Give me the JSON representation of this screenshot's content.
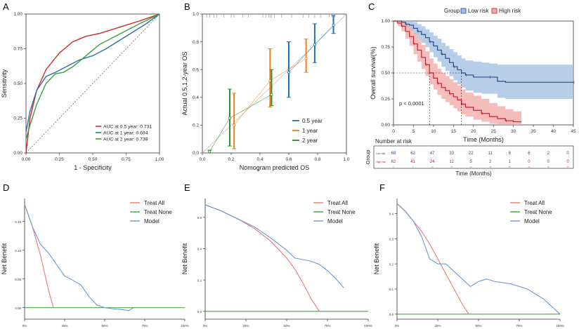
{
  "colors": {
    "red": "#cc2b2b",
    "blue": "#2e6fa8",
    "green": "#3a9e3a",
    "orange": "#f07f1c",
    "calib_blue": "#1f6fba",
    "calib_green": "#2a8f2a",
    "km_low": "#274b8e",
    "km_high": "#c8202a",
    "km_low_band": "#9fbde0",
    "km_high_band": "#f2a6a6",
    "dca_all": "#e8797a",
    "dca_none": "#3aa83a",
    "dca_model": "#6b97cf",
    "axis": "#333333",
    "text": "#222222"
  },
  "panels": {
    "A": "A",
    "B": "B",
    "C": "C",
    "D": "D",
    "E": "E",
    "F": "F"
  },
  "chart_data": [
    {
      "id": "A",
      "type": "line",
      "xlabel": "1 - Specificity",
      "ylabel": "Sensitivity",
      "xlim": [
        0,
        1
      ],
      "ylim": [
        0,
        1
      ],
      "xticks": [
        "0.00",
        "0.25",
        "0.50",
        "0.75",
        "1.00"
      ],
      "yticks": [
        "0.00",
        "0.25",
        "0.50",
        "0.75",
        "1.00"
      ],
      "legend_position": "bottom-right",
      "series": [
        {
          "name": "AUC at 0.5 year: 0.731",
          "color_key": "red",
          "x": [
            0,
            0.03,
            0.08,
            0.15,
            0.25,
            0.35,
            0.45,
            0.55,
            0.65,
            0.75,
            0.85,
            1.0
          ],
          "y": [
            0,
            0.25,
            0.45,
            0.6,
            0.72,
            0.8,
            0.84,
            0.86,
            0.89,
            0.92,
            0.95,
            1.0
          ]
        },
        {
          "name": "AUC at 1 year: 0.694",
          "color_key": "blue",
          "x": [
            0,
            0.03,
            0.08,
            0.15,
            0.22,
            0.3,
            0.4,
            0.5,
            0.6,
            0.7,
            0.8,
            0.9,
            1.0
          ],
          "y": [
            0.15,
            0.3,
            0.45,
            0.55,
            0.58,
            0.62,
            0.67,
            0.7,
            0.75,
            0.81,
            0.87,
            0.93,
            1.0
          ]
        },
        {
          "name": "AUC at 2 year: 0.738",
          "color_key": "green",
          "x": [
            0,
            0.03,
            0.08,
            0.15,
            0.22,
            0.28,
            0.35,
            0.45,
            0.55,
            0.65,
            0.75,
            0.85,
            1.0
          ],
          "y": [
            0.1,
            0.2,
            0.35,
            0.5,
            0.57,
            0.58,
            0.62,
            0.7,
            0.78,
            0.83,
            0.88,
            0.93,
            1.0
          ]
        }
      ]
    },
    {
      "id": "B",
      "type": "scatter",
      "xlabel": "Nomogram predicted OS",
      "ylabel": "Actual 0.5,1,2-year OS",
      "xlim": [
        0,
        1
      ],
      "ylim": [
        0,
        1
      ],
      "xticks": [
        "0.0",
        "0.2",
        "0.4",
        "0.6",
        "0.8",
        "1.0"
      ],
      "yticks": [
        "0.0",
        "0.2",
        "0.4",
        "0.6",
        "0.8",
        "1.0"
      ],
      "legend_position": "bottom-right",
      "rug": [
        0.03,
        0.05,
        0.08,
        0.1,
        0.15,
        0.2,
        0.22,
        0.28,
        0.32,
        0.42,
        0.44,
        0.46,
        0.47,
        0.48,
        0.5,
        0.55,
        0.62,
        0.7,
        0.74,
        0.78,
        0.82,
        0.88,
        0.9,
        0.92
      ],
      "series": [
        {
          "name": "0.5 year",
          "color_key": "calib_blue",
          "x": [
            0.6,
            0.78,
            0.91
          ],
          "y": [
            0.58,
            0.78,
            0.92
          ],
          "lo": [
            0.4,
            0.65,
            0.86
          ],
          "hi": [
            0.8,
            0.93,
            0.99
          ]
        },
        {
          "name": "1 year",
          "color_key": "orange",
          "x": [
            0.22,
            0.47,
            0.72
          ],
          "y": [
            0.2,
            0.52,
            0.68
          ],
          "lo": [
            0.03,
            0.33,
            0.58
          ],
          "hi": [
            0.43,
            0.75,
            0.82
          ]
        },
        {
          "name": "2 year",
          "color_key": "calib_green",
          "x": [
            0.05,
            0.19,
            0.48
          ],
          "y": [
            0.01,
            0.25,
            0.42
          ],
          "lo": [
            0.0,
            0.05,
            0.34
          ],
          "hi": [
            0.02,
            0.46,
            0.6
          ]
        }
      ],
      "ideal_line": true
    },
    {
      "id": "C",
      "type": "line",
      "legend_title": "Group",
      "legend_labels": [
        "Low risk",
        "High risk"
      ],
      "xlabel": "Time (Months)",
      "ylabel": "Overall survival(%)",
      "xlim": [
        0,
        45
      ],
      "ylim": [
        0,
        1
      ],
      "xticks": [
        "0",
        "5",
        "10",
        "15",
        "20",
        "25",
        "30",
        "35",
        "40",
        "45"
      ],
      "yticks": [
        "0.00",
        "0.25",
        "0.50",
        "0.75",
        "1.00"
      ],
      "pvalue": "p < 0.0001",
      "median_low": 17,
      "median_high": 9,
      "series": [
        {
          "name": "Low risk",
          "color_key": "km_low",
          "band_key": "km_low_band",
          "x": [
            0,
            2,
            3,
            4,
            5,
            6,
            7,
            8,
            9,
            10,
            11,
            12,
            13,
            14,
            15,
            16,
            17,
            18,
            20,
            22,
            24,
            26,
            28,
            45
          ],
          "y": [
            1.0,
            0.99,
            0.97,
            0.96,
            0.93,
            0.9,
            0.87,
            0.84,
            0.8,
            0.76,
            0.72,
            0.68,
            0.64,
            0.6,
            0.56,
            0.53,
            0.5,
            0.48,
            0.46,
            0.46,
            0.46,
            0.42,
            0.41,
            0.41
          ],
          "lo": [
            1.0,
            0.97,
            0.94,
            0.91,
            0.87,
            0.83,
            0.79,
            0.75,
            0.7,
            0.65,
            0.61,
            0.56,
            0.52,
            0.47,
            0.43,
            0.39,
            0.36,
            0.33,
            0.31,
            0.3,
            0.3,
            0.26,
            0.25,
            0.25
          ],
          "hi": [
            1.0,
            1.0,
            1.0,
            1.0,
            0.99,
            0.97,
            0.95,
            0.92,
            0.89,
            0.86,
            0.83,
            0.79,
            0.76,
            0.73,
            0.7,
            0.67,
            0.64,
            0.62,
            0.61,
            0.6,
            0.59,
            0.58,
            0.58,
            0.58
          ]
        },
        {
          "name": "High risk",
          "color_key": "km_high",
          "band_key": "km_high_band",
          "x": [
            0,
            1,
            2,
            3,
            4,
            5,
            6,
            7,
            8,
            9,
            10,
            11,
            12,
            13,
            14,
            15,
            16,
            17,
            18,
            20,
            22,
            24,
            26,
            28,
            30,
            32
          ],
          "y": [
            1.0,
            0.98,
            0.95,
            0.9,
            0.85,
            0.78,
            0.72,
            0.65,
            0.58,
            0.5,
            0.45,
            0.4,
            0.36,
            0.33,
            0.3,
            0.27,
            0.24,
            0.2,
            0.17,
            0.14,
            0.11,
            0.08,
            0.06,
            0.04,
            0.03,
            0.03
          ],
          "lo": [
            1.0,
            0.95,
            0.9,
            0.83,
            0.76,
            0.68,
            0.61,
            0.54,
            0.47,
            0.39,
            0.34,
            0.29,
            0.25,
            0.22,
            0.19,
            0.16,
            0.13,
            0.1,
            0.08,
            0.05,
            0.03,
            0.01,
            0.0,
            0.0,
            0.0,
            0.0
          ],
          "hi": [
            1.0,
            1.0,
            1.0,
            0.97,
            0.94,
            0.88,
            0.83,
            0.77,
            0.71,
            0.64,
            0.59,
            0.54,
            0.5,
            0.47,
            0.44,
            0.41,
            0.38,
            0.34,
            0.31,
            0.28,
            0.25,
            0.21,
            0.18,
            0.15,
            0.13,
            0.13
          ]
        }
      ]
    },
    {
      "id": "C-risk",
      "type": "table",
      "title": "Number at risk",
      "ylabel": "Group",
      "xlabel": "Time (Months)",
      "row_labels": [
        "Low risk",
        "High risk"
      ],
      "times": [
        "0",
        "5",
        "10",
        "15",
        "20",
        "25",
        "30",
        "35",
        "40",
        "45"
      ],
      "rows": [
        {
          "name": "Low risk",
          "color_key": "km_low",
          "values": [
            "68",
            "62",
            "47",
            "33",
            "22",
            "11",
            "6",
            "6",
            "2",
            "0"
          ]
        },
        {
          "name": "High risk",
          "color_key": "km_high",
          "values": [
            "62",
            "41",
            "24",
            "12",
            "5",
            "2",
            "1",
            "0",
            "0",
            "0"
          ]
        }
      ]
    },
    {
      "id": "D",
      "type": "line",
      "xlabel": "Threshold Probability",
      "ylabel": "Net Benefit",
      "xlim": [
        0,
        1
      ],
      "ylim": [
        -0.02,
        0.19
      ],
      "xticks": [
        "0%",
        "25%",
        "50%",
        "75%",
        "100%"
      ],
      "yticks": [
        "0.00",
        "0.05",
        "0.10",
        "0.15"
      ],
      "legend_position": "top-right",
      "series": [
        {
          "name": "Treat All",
          "color_key": "dca_all",
          "x": [
            0,
            0.05,
            0.1,
            0.15,
            0.18
          ],
          "y": [
            0.18,
            0.14,
            0.09,
            0.03,
            0.0
          ]
        },
        {
          "name": "Treat None",
          "color_key": "dca_none",
          "x": [
            0,
            1
          ],
          "y": [
            0,
            0
          ]
        },
        {
          "name": "Model",
          "color_key": "dca_model",
          "x": [
            0,
            0.05,
            0.1,
            0.15,
            0.2,
            0.25,
            0.3,
            0.35,
            0.4,
            0.45,
            0.5,
            0.55,
            0.6,
            0.65,
            0.68
          ],
          "y": [
            0.18,
            0.14,
            0.11,
            0.095,
            0.075,
            0.055,
            0.048,
            0.04,
            0.02,
            0.005,
            0.0,
            -0.002,
            -0.003,
            -0.005,
            0.0
          ]
        }
      ]
    },
    {
      "id": "E",
      "type": "line",
      "xlabel": "Threshold Probability",
      "ylabel": "Net Benefit",
      "xlim": [
        0,
        1
      ],
      "ylim": [
        -0.05,
        0.72
      ],
      "xticks": [
        "0%",
        "25%",
        "50%",
        "75%",
        "100%"
      ],
      "yticks": [
        "0.0",
        "0.2",
        "0.4",
        "0.6"
      ],
      "legend_position": "top-right",
      "series": [
        {
          "name": "Treat All",
          "color_key": "dca_all",
          "x": [
            0,
            0.1,
            0.2,
            0.3,
            0.4,
            0.5,
            0.55,
            0.6,
            0.65,
            0.7
          ],
          "y": [
            0.68,
            0.64,
            0.59,
            0.53,
            0.45,
            0.34,
            0.27,
            0.18,
            0.08,
            0.0
          ]
        },
        {
          "name": "Treat None",
          "color_key": "dca_none",
          "x": [
            0,
            1
          ],
          "y": [
            0,
            0
          ]
        },
        {
          "name": "Model",
          "color_key": "dca_model",
          "x": [
            0,
            0.1,
            0.2,
            0.3,
            0.4,
            0.5,
            0.55,
            0.6,
            0.65,
            0.7,
            0.75,
            0.8,
            0.85
          ],
          "y": [
            0.68,
            0.64,
            0.59,
            0.54,
            0.47,
            0.39,
            0.34,
            0.33,
            0.32,
            0.3,
            0.26,
            0.21,
            0.15
          ]
        }
      ]
    },
    {
      "id": "F",
      "type": "line",
      "xlabel": "Threshold Probability",
      "ylabel": "Net Benefit",
      "xlim": [
        0,
        1
      ],
      "ylim": [
        -0.02,
        0.46
      ],
      "xticks": [
        "0%",
        "25%",
        "50%",
        "75%",
        "100%"
      ],
      "yticks": [
        "0.0",
        "0.1",
        "0.2",
        "0.3",
        "0.4"
      ],
      "legend_position": "top-right",
      "series": [
        {
          "name": "Treat All",
          "color_key": "dca_all",
          "x": [
            0,
            0.05,
            0.1,
            0.15,
            0.2,
            0.25,
            0.3,
            0.35,
            0.4,
            0.44
          ],
          "y": [
            0.44,
            0.41,
            0.37,
            0.33,
            0.28,
            0.22,
            0.16,
            0.1,
            0.04,
            0.0
          ]
        },
        {
          "name": "Treat None",
          "color_key": "dca_none",
          "x": [
            0,
            1
          ],
          "y": [
            0,
            0
          ]
        },
        {
          "name": "Model",
          "color_key": "dca_model",
          "x": [
            0,
            0.05,
            0.1,
            0.15,
            0.2,
            0.25,
            0.3,
            0.35,
            0.4,
            0.45,
            0.5,
            0.55,
            0.6,
            0.7,
            0.8,
            0.9,
            1.0
          ],
          "y": [
            0.44,
            0.41,
            0.37,
            0.31,
            0.22,
            0.2,
            0.2,
            0.17,
            0.14,
            0.11,
            0.13,
            0.14,
            0.13,
            0.12,
            0.1,
            0.06,
            0.0
          ]
        }
      ]
    }
  ]
}
